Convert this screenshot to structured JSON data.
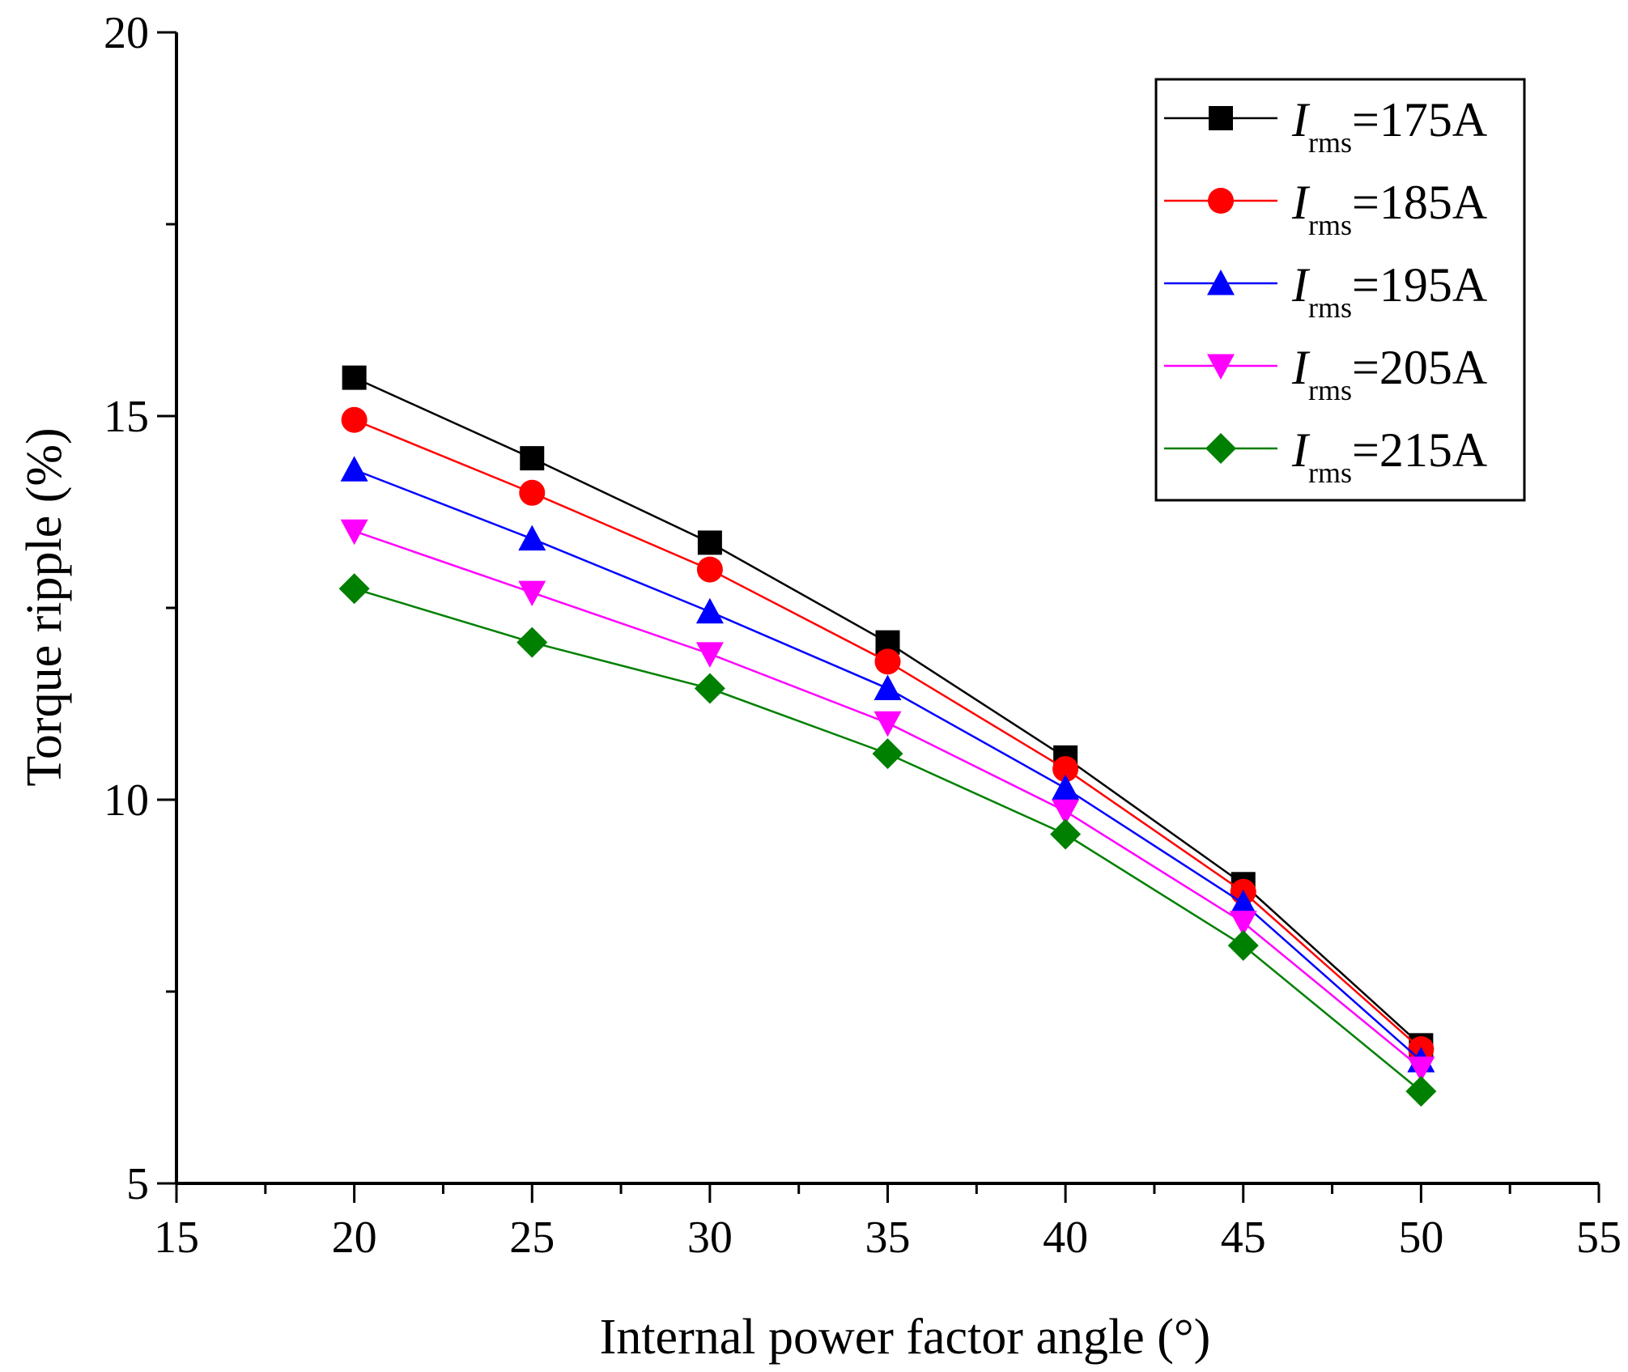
{
  "chart_data": {
    "type": "line",
    "title": "",
    "xlabel": "Internal power factor angle (°)",
    "ylabel": "Torque ripple (%)",
    "xlim": [
      15,
      55
    ],
    "ylim": [
      5,
      20
    ],
    "x_ticks": [
      "15",
      "20",
      "25",
      "30",
      "35",
      "40",
      "45",
      "50",
      "55"
    ],
    "y_ticks": [
      "5",
      "10",
      "15",
      "20"
    ],
    "legend_position": "top-right",
    "x": [
      20,
      25,
      30,
      35,
      40,
      45,
      50
    ],
    "series": [
      {
        "name": "Irms=175A",
        "label_main": "I",
        "label_sub": "rms",
        "label_value": "=175A",
        "color": "#000000",
        "marker": "square",
        "values": [
          15.5,
          14.45,
          13.35,
          12.05,
          10.55,
          8.9,
          6.8
        ]
      },
      {
        "name": "Irms=185A",
        "label_main": "I",
        "label_sub": "rms",
        "label_value": "=185A",
        "color": "#ff0000",
        "marker": "circle",
        "values": [
          14.95,
          14.0,
          13.0,
          11.8,
          10.4,
          8.8,
          6.75
        ]
      },
      {
        "name": "Irms=195A",
        "label_main": "I",
        "label_sub": "rms",
        "label_value": "=195A",
        "color": "#0000ff",
        "marker": "triangle-up",
        "values": [
          14.3,
          13.4,
          12.45,
          11.45,
          10.15,
          8.65,
          6.6
        ]
      },
      {
        "name": "Irms=205A",
        "label_main": "I",
        "label_sub": "rms",
        "label_value": "=205A",
        "color": "#ff00ff",
        "marker": "triangle-down",
        "values": [
          13.5,
          12.7,
          11.9,
          11.0,
          9.85,
          8.4,
          6.5
        ]
      },
      {
        "name": "Irms=215A",
        "label_main": "I",
        "label_sub": "rms",
        "label_value": "=215A",
        "color": "#008000",
        "marker": "diamond",
        "values": [
          12.75,
          12.05,
          11.45,
          10.6,
          9.55,
          8.1,
          6.2
        ]
      }
    ]
  }
}
